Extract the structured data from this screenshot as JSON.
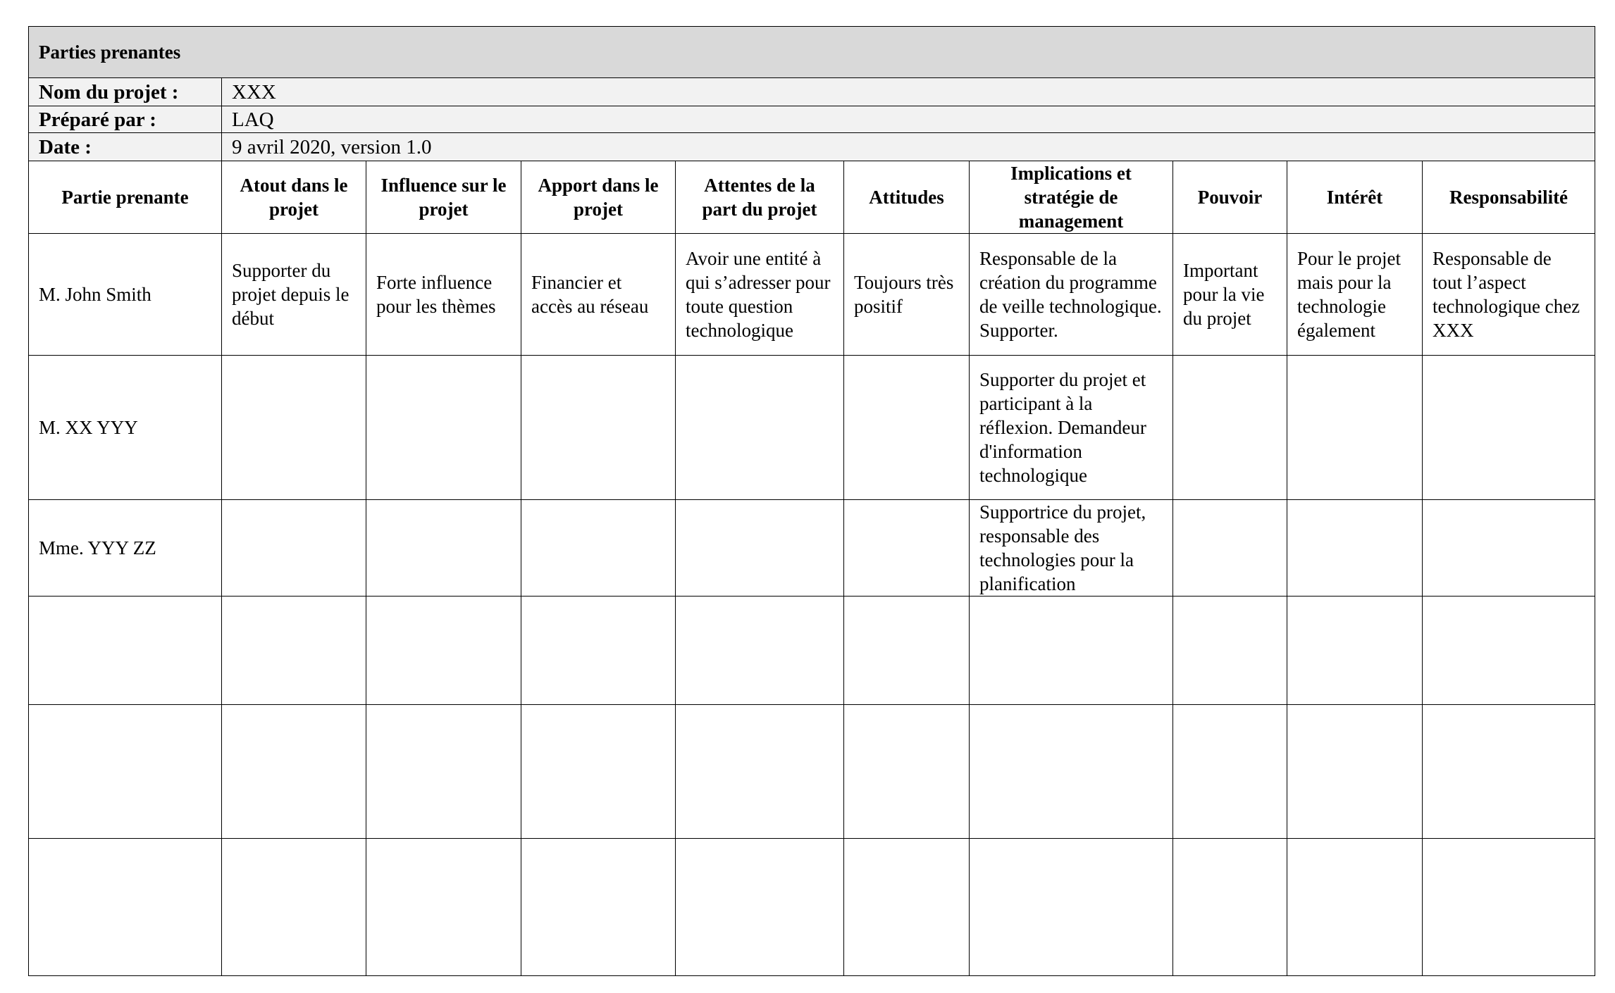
{
  "title": "Parties prenantes",
  "meta": [
    {
      "label": "Nom du projet :",
      "value": "XXX"
    },
    {
      "label": "Préparé par :",
      "value": "LAQ"
    },
    {
      "label": "Date :",
      "value": "9 avril 2020, version 1.0"
    }
  ],
  "columns": [
    "Partie prenante",
    "Atout dans le projet",
    "Influence sur le projet",
    "Apport dans le projet",
    "Attentes de la part du projet",
    "Attitudes",
    "Implications et stratégie de management",
    "Pouvoir",
    "Intérêt",
    "Responsabilité"
  ],
  "rows": [
    [
      "M. John Smith",
      "Supporter du projet depuis le début",
      "Forte influence pour les thèmes",
      "Financier et accès au réseau",
      "Avoir une entité à qui s’adresser pour toute question technologique",
      "Toujours très positif",
      "Responsable de la création du programme de veille technologique. Supporter.",
      "Important pour la vie du projet",
      "Pour le projet mais pour la technologie également",
      "Responsable de tout l’aspect technologique chez XXX"
    ],
    [
      "M. XX YYY",
      "",
      "",
      "",
      "",
      "",
      "Supporter du projet et participant à la réflexion. Demandeur d'information technologique",
      "",
      "",
      ""
    ],
    [
      "Mme. YYY ZZ",
      "",
      "",
      "",
      "",
      "",
      "Supportrice du projet, responsable des technologies pour la planification",
      "",
      "",
      ""
    ],
    [
      "",
      "",
      "",
      "",
      "",
      "",
      "",
      "",
      "",
      ""
    ],
    [
      "",
      "",
      "",
      "",
      "",
      "",
      "",
      "",
      "",
      ""
    ],
    [
      "",
      "",
      "",
      "",
      "",
      "",
      "",
      "",
      "",
      ""
    ]
  ]
}
